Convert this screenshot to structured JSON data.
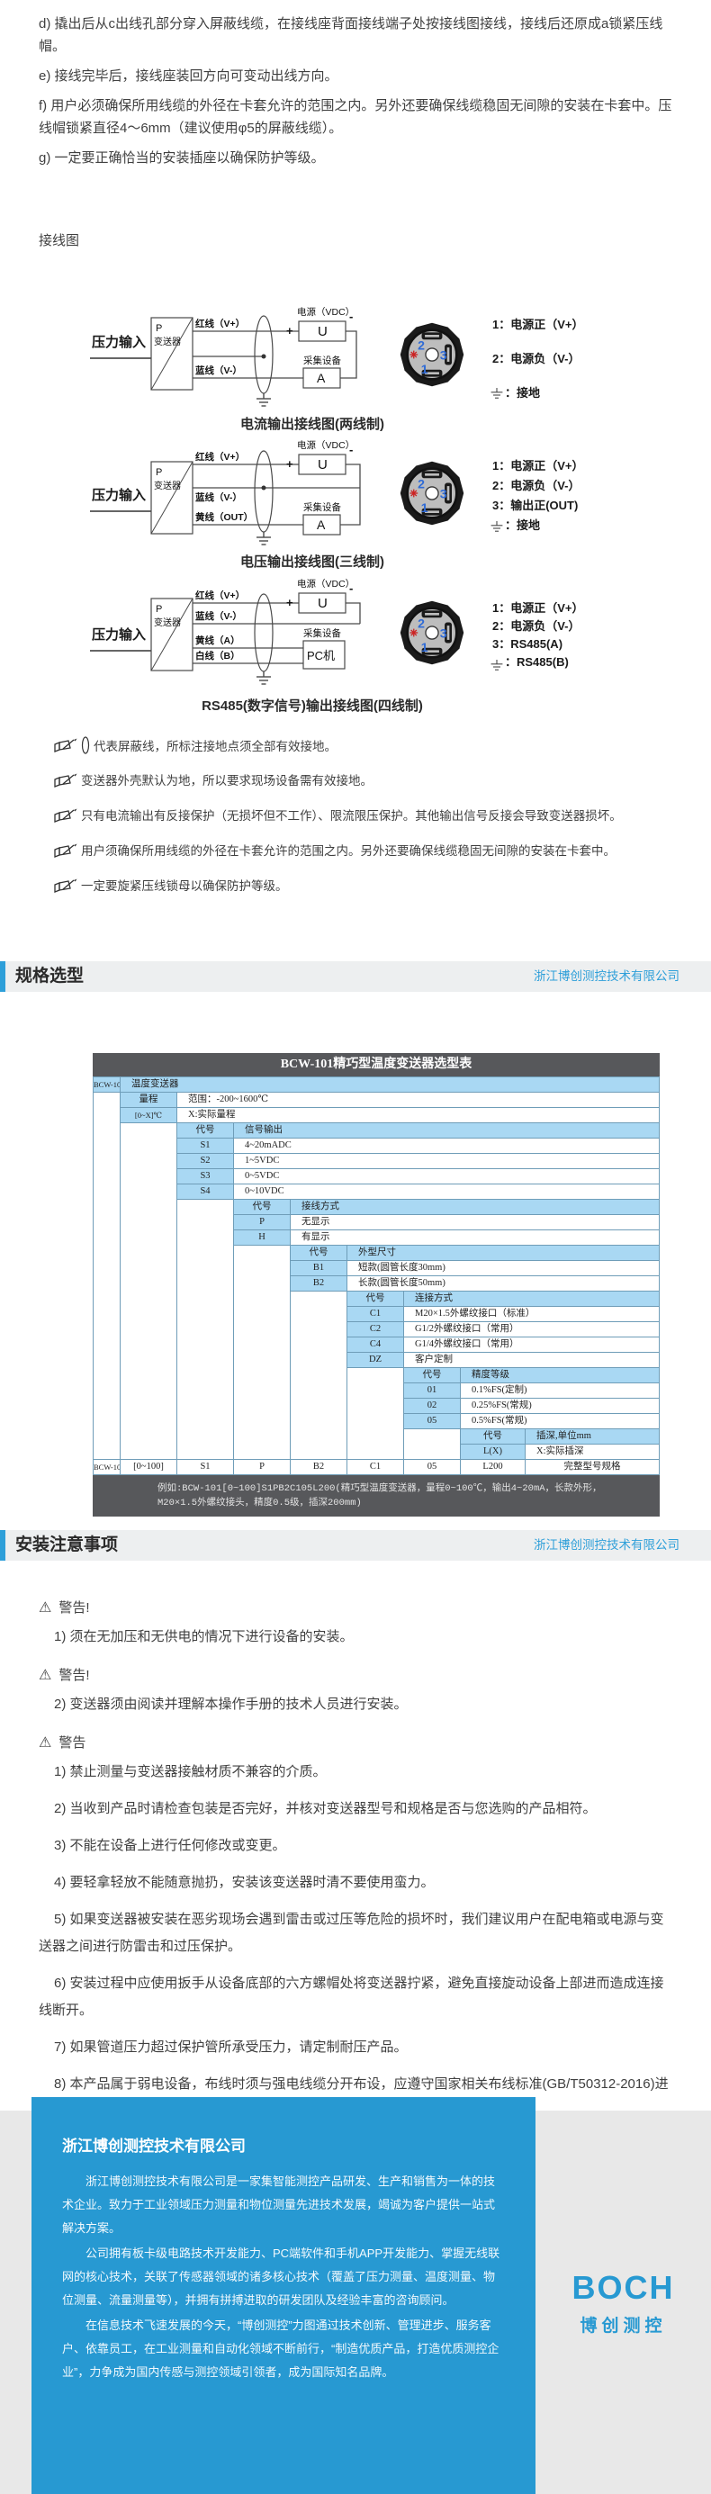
{
  "intro": {
    "items": [
      "d) 撬出后从c出线孔部分穿入屏蔽线缆，在接线座背面接线端子处按接线图接线，接线后还原成a锁紧压线帽。",
      "e) 接线完毕后，接线座装回方向可变动出线方向。",
      "f) 用户必须确保所用线缆的外径在卡套允许的范围之内。另外还要确保线缆稳固无间隙的安装在卡套中。压线帽锁紧直径4～6mm（建议使用φ5的屏蔽线缆）。",
      "g) 一定要正确恰当的安装插座以确保防护等级。"
    ]
  },
  "wiring": {
    "heading": "接线图"
  },
  "connector": {
    "pins": [
      "2",
      "3",
      "1"
    ]
  },
  "diagrams": [
    {
      "caption": "电流输出接线图(两线制)",
      "input_label": "压力输入",
      "box_top": "P",
      "box_bottom": "变送器",
      "supply_label": "电源（VDC）",
      "supply_symbol": "U",
      "plus": "+",
      "minus": "-",
      "collector_label": "采集设备",
      "collector_symbol": "A",
      "wires": [
        "红线（V+）",
        "蓝线（V-）"
      ],
      "legend": [
        "1：电源正（V+）",
        "2：电源负（V-）",
        "：接地"
      ]
    },
    {
      "caption": "电压输出接线图(三线制)",
      "input_label": "压力输入",
      "box_top": "P",
      "box_bottom": "变送器",
      "supply_label": "电源（VDC）",
      "supply_symbol": "U",
      "plus": "+",
      "minus": "-",
      "collector_label": "采集设备",
      "collector_symbol": "A",
      "wires": [
        "红线（V+）",
        "蓝线（V-）",
        "黄线（OUT）"
      ],
      "legend": [
        "1：电源正（V+）",
        "2：电源负（V-）",
        "3：输出正(OUT)",
        "：接地"
      ]
    },
    {
      "caption": "RS485(数字信号)输出接线图(四线制)",
      "input_label": "压力输入",
      "box_top": "P",
      "box_bottom": "变送器",
      "supply_label": "电源（VDC）",
      "supply_symbol": "U",
      "plus": "+",
      "minus": "-",
      "collector_label": "采集设备",
      "collector_symbol": "PC机",
      "wires": [
        "红线（V+）",
        "蓝线（V-）",
        "黄线（A）",
        "白线（B）"
      ],
      "legend": [
        "1：电源正（V+）",
        "2：电源负（V-）",
        "3：RS485(A)",
        "：RS485(B)"
      ]
    }
  ],
  "notes": [
    "代表屏蔽线，所标注接地点须全部有效接地。",
    "变送器外壳默认为地，所以要求现场设备需有效接地。",
    "只有电流输出有反接保护（无损坏但不工作）、限流限压保护。其他输出信号反接会导致变送器损坏。",
    "用户须确保所用线缆的外径在卡套允许的范围之内。另外还要确保线缆稳固无间隙的安装在卡套中。",
    "一定要旋紧压线锁母以确保防护等级。"
  ],
  "sections": [
    {
      "title": "规格选型",
      "company": "浙江博创测控技术有限公司"
    },
    {
      "title": "安装注意事项",
      "company": "浙江博创测控技术有限公司"
    }
  ],
  "accent_color": "#2e9fd9",
  "table": {
    "title": "BCW-101精巧型温度变送器选型表",
    "model": "BCW-101",
    "model_desc": "温度变送器",
    "range_label": "量程",
    "range_value": "范围：-200~1600℃",
    "range_code": "[0~X]℃",
    "range_code_desc": "X:实际量程",
    "groups": [
      {
        "header": [
          "代号",
          "信号输出"
        ],
        "rows": [
          [
            "S1",
            "4~20mADC"
          ],
          [
            "S2",
            "1~5VDC"
          ],
          [
            "S3",
            "0~5VDC"
          ],
          [
            "S4",
            "0~10VDC"
          ]
        ]
      },
      {
        "header": [
          "代号",
          "接线方式"
        ],
        "rows": [
          [
            "P",
            "无显示"
          ],
          [
            "H",
            "有显示"
          ]
        ]
      },
      {
        "header": [
          "代号",
          "外型尺寸"
        ],
        "rows": [
          [
            "B1",
            "短款(圆管长度30mm)"
          ],
          [
            "B2",
            "长款(圆管长度50mm)"
          ]
        ]
      },
      {
        "header": [
          "代号",
          "连接方式"
        ],
        "rows": [
          [
            "C1",
            "M20×1.5外螺纹接口（标准）"
          ],
          [
            "C2",
            "G1/2外螺纹接口（常用）"
          ],
          [
            "C4",
            "G1/4外螺纹接口（常用）"
          ],
          [
            "DZ",
            "客户定制"
          ]
        ]
      },
      {
        "header": [
          "代号",
          "精度等级"
        ],
        "rows": [
          [
            "01",
            "0.1%FS(定制)"
          ],
          [
            "02",
            "0.25%FS(常规)"
          ],
          [
            "05",
            "0.5%FS(常规)"
          ]
        ]
      },
      {
        "header": [
          "代号",
          "插深,单位mm"
        ],
        "rows": [
          [
            "L(X)",
            "X:实际插深"
          ]
        ]
      }
    ],
    "example_row": [
      "BCW-101",
      "[0~100]",
      "S1",
      "P",
      "B2",
      "C1",
      "05",
      "L200",
      "完整型号规格"
    ],
    "note_lines": [
      "例如:BCW-101[0~100]S1PB2C105L200(精巧型温度变送器，量程0~100℃，输出4~20mA，长款外形，",
      "M20×1.5外螺纹接头，精度0.5级，插深200mm)"
    ]
  },
  "install": {
    "warnings": [
      {
        "label": "警告!",
        "items": [
          "1) 须在无加压和无供电的情况下进行设备的安装。"
        ]
      },
      {
        "label": "警告!",
        "items": [
          "2) 变送器须由阅读并理解本操作手册的技术人员进行安装。"
        ]
      },
      {
        "label": "警告",
        "items": [
          "1) 禁止测量与变送器接触材质不兼容的介质。",
          "2) 当收到产品时请检查包装是否完好，并核对变送器型号和规格是否与您选购的产品相符。",
          "3) 不能在设备上进行任何修改或变更。",
          "4) 要轻拿轻放不能随意抛扔，安装该变送器时清不要使用蛮力。",
          "5) 如果变送器被安装在恶劣现场会遇到雷击或过压等危险的损坏时，我们建议用户在配电箱或电源与变送器之间进行防雷击和过压保护。",
          "6) 安装过程中应使用扳手从设备底部的六方螺帽处将变送器拧紧，避免直接旋动设备上部进而造成连接线断开。",
          "7) 如果管道压力超过保护管所承受压力，请定制耐压产品。",
          "8) 本产品属于弱电设备，布线时须与强电线缆分开布设，应遵守国家相关布线标准(GB/T50312-2016)进行布线。"
        ]
      }
    ]
  },
  "footer": {
    "company_title": "浙江博创测控技术有限公司",
    "paragraphs": [
      "浙江博创测控技术有限公司是一家集智能测控产品研发、生产和销售为一体的技术企业。致力于工业领域压力测量和物位测量先进技术发展，竭诚为客户提供一站式解决方案。",
      "公司拥有板卡级电路技术开发能力、PC端软件和手机APP开发能力、掌握无线联网的核心技术，关联了传感器领域的诸多核心技术（覆盖了压力测量、温度测量、物位测量、流量测量等），并拥有拼搏进取的研发团队及经验丰富的咨询顾问。",
      "在信息技术飞速发展的今天，“博创测控”力图通过技术创新、管理进步、服务客户、依靠员工，在工业测量和自动化领域不断前行，“制造优质产品，打造优质测控企业”，力争成为国内传感与测控领域引领者，成为国际知名品牌。"
    ],
    "logo_text": "BOCH",
    "logo_sub": "博创测控"
  }
}
